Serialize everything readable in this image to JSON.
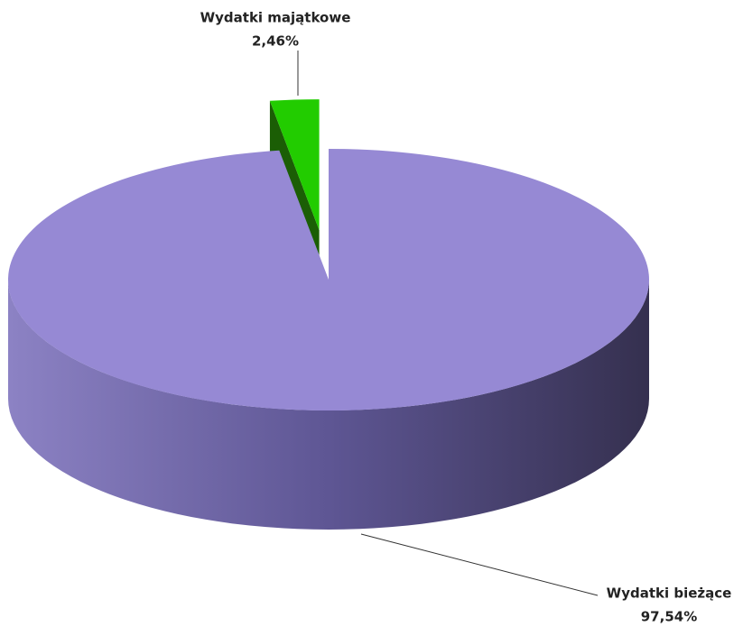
{
  "chart_data": {
    "type": "pie",
    "categories": [
      "Wydatki bieżące",
      "Wydatki majątkowe"
    ],
    "values": [
      97.54,
      2.46
    ],
    "value_labels": [
      "97,54%",
      "2,46%"
    ],
    "colors": [
      "#9689d4",
      "#22cc00"
    ]
  }
}
